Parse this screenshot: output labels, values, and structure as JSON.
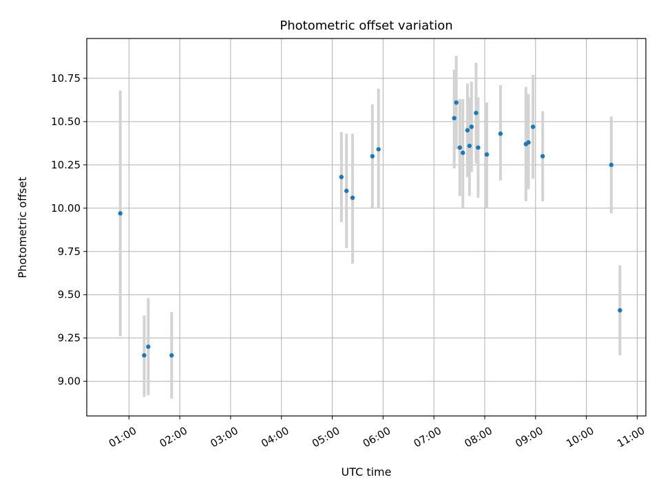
{
  "chart_data": {
    "type": "scatter",
    "title": "Photometric offset variation",
    "xlabel": "UTC time",
    "ylabel": "Photometric offset",
    "x_unit": "hours UTC",
    "xlim": [
      0.17,
      11.17
    ],
    "ylim": [
      8.8,
      10.98
    ],
    "x_ticks": [
      {
        "value": 1,
        "label": "01:00"
      },
      {
        "value": 2,
        "label": "02:00"
      },
      {
        "value": 3,
        "label": "03:00"
      },
      {
        "value": 4,
        "label": "04:00"
      },
      {
        "value": 5,
        "label": "05:00"
      },
      {
        "value": 6,
        "label": "06:00"
      },
      {
        "value": 7,
        "label": "07:00"
      },
      {
        "value": 8,
        "label": "08:00"
      },
      {
        "value": 9,
        "label": "09:00"
      },
      {
        "value": 10,
        "label": "10:00"
      },
      {
        "value": 11,
        "label": "11:00"
      }
    ],
    "y_ticks": [
      {
        "value": 9.0,
        "label": "9.00"
      },
      {
        "value": 9.25,
        "label": "9.25"
      },
      {
        "value": 9.5,
        "label": "9.50"
      },
      {
        "value": 9.75,
        "label": "9.75"
      },
      {
        "value": 10.0,
        "label": "10.00"
      },
      {
        "value": 10.25,
        "label": "10.25"
      },
      {
        "value": 10.5,
        "label": "10.50"
      },
      {
        "value": 10.75,
        "label": "10.75"
      }
    ],
    "grid": true,
    "colors": {
      "point": "#1f77b4",
      "errorbar": "#d3d3d3",
      "grid": "#b0b0b0"
    },
    "points": [
      {
        "x": 0.83,
        "y": 9.97,
        "ylow": 9.26,
        "yhigh": 10.68
      },
      {
        "x": 1.3,
        "y": 9.15,
        "ylow": 8.91,
        "yhigh": 9.38
      },
      {
        "x": 1.38,
        "y": 9.2,
        "ylow": 8.92,
        "yhigh": 9.48
      },
      {
        "x": 1.84,
        "y": 9.15,
        "ylow": 8.9,
        "yhigh": 9.4
      },
      {
        "x": 5.18,
        "y": 10.18,
        "ylow": 9.92,
        "yhigh": 10.44
      },
      {
        "x": 5.28,
        "y": 10.1,
        "ylow": 9.77,
        "yhigh": 10.43
      },
      {
        "x": 5.4,
        "y": 10.06,
        "ylow": 9.68,
        "yhigh": 10.43
      },
      {
        "x": 5.79,
        "y": 10.3,
        "ylow": 10.0,
        "yhigh": 10.6
      },
      {
        "x": 5.91,
        "y": 10.34,
        "ylow": 10.0,
        "yhigh": 10.69
      },
      {
        "x": 7.4,
        "y": 10.52,
        "ylow": 10.23,
        "yhigh": 10.8
      },
      {
        "x": 7.44,
        "y": 10.61,
        "ylow": 10.34,
        "yhigh": 10.88
      },
      {
        "x": 7.51,
        "y": 10.35,
        "ylow": 10.07,
        "yhigh": 10.63
      },
      {
        "x": 7.57,
        "y": 10.32,
        "ylow": 10.0,
        "yhigh": 10.63
      },
      {
        "x": 7.66,
        "y": 10.45,
        "ylow": 10.18,
        "yhigh": 10.72
      },
      {
        "x": 7.7,
        "y": 10.36,
        "ylow": 10.07,
        "yhigh": 10.64
      },
      {
        "x": 7.74,
        "y": 10.47,
        "ylow": 10.21,
        "yhigh": 10.73
      },
      {
        "x": 7.83,
        "y": 10.55,
        "ylow": 10.26,
        "yhigh": 10.84
      },
      {
        "x": 7.87,
        "y": 10.35,
        "ylow": 10.06,
        "yhigh": 10.64
      },
      {
        "x": 8.04,
        "y": 10.31,
        "ylow": 10.0,
        "yhigh": 10.61
      },
      {
        "x": 8.31,
        "y": 10.43,
        "ylow": 10.16,
        "yhigh": 10.71
      },
      {
        "x": 8.81,
        "y": 10.37,
        "ylow": 10.04,
        "yhigh": 10.7
      },
      {
        "x": 8.86,
        "y": 10.38,
        "ylow": 10.11,
        "yhigh": 10.66
      },
      {
        "x": 8.95,
        "y": 10.47,
        "ylow": 10.17,
        "yhigh": 10.77
      },
      {
        "x": 9.14,
        "y": 10.3,
        "ylow": 10.04,
        "yhigh": 10.56
      },
      {
        "x": 10.49,
        "y": 10.25,
        "ylow": 9.97,
        "yhigh": 10.53
      },
      {
        "x": 10.66,
        "y": 9.41,
        "ylow": 9.15,
        "yhigh": 9.67
      }
    ]
  }
}
